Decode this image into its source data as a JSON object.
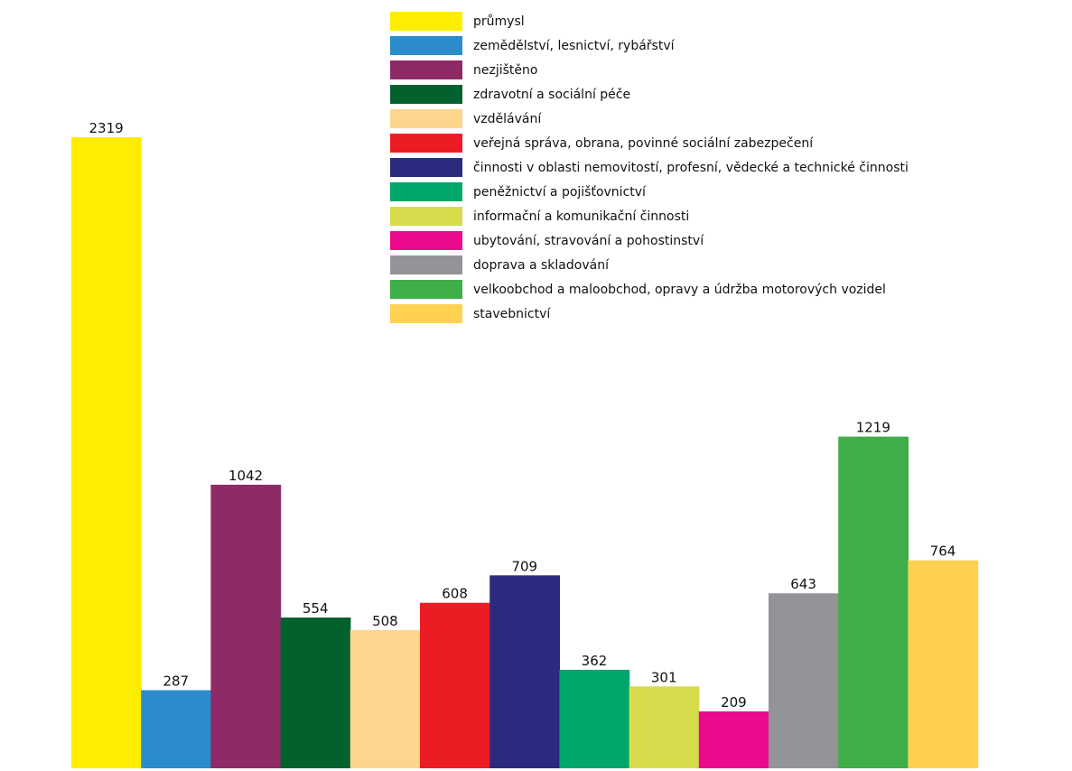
{
  "chart_data": {
    "type": "bar",
    "categories": [
      "průmysl",
      "zemědělství, lesnictví, rybářství",
      "nezjištěno",
      "zdravotní a sociální péče",
      "vzdělávání",
      "veřejná správa, obrana, povinné sociální zabezpečení",
      "činnosti v oblasti nemovitostí, profesní, vědecké a technické činnosti",
      "peněžnictví a pojišťovnictví",
      "informační a komunikační činnosti",
      "ubytování, stravování a pohostinství",
      "doprava a skladování",
      "velkoobchod a maloobchod, opravy a údržba motorových vozidel",
      "stavebnictví"
    ],
    "values": [
      2319,
      287,
      1042,
      554,
      508,
      608,
      709,
      362,
      301,
      209,
      643,
      1219,
      764
    ],
    "value_labels": [
      "2319",
      "287",
      "1042",
      "554",
      "508",
      "608",
      "709",
      "362",
      "301",
      "209",
      "643",
      "1219",
      "764"
    ],
    "colors": [
      "#ffed00",
      "#2b8ccb",
      "#8e2a66",
      "#03612d",
      "#fdd68e",
      "#ec1c24",
      "#2b2a7e",
      "#00a66a",
      "#d6dc4c",
      "#ec0a8c",
      "#929497",
      "#3fae49",
      "#ffd150"
    ],
    "title": "",
    "xlabel": "",
    "ylabel": "",
    "ylim": [
      0,
      2319
    ],
    "grid": false,
    "legend": "top-right"
  }
}
